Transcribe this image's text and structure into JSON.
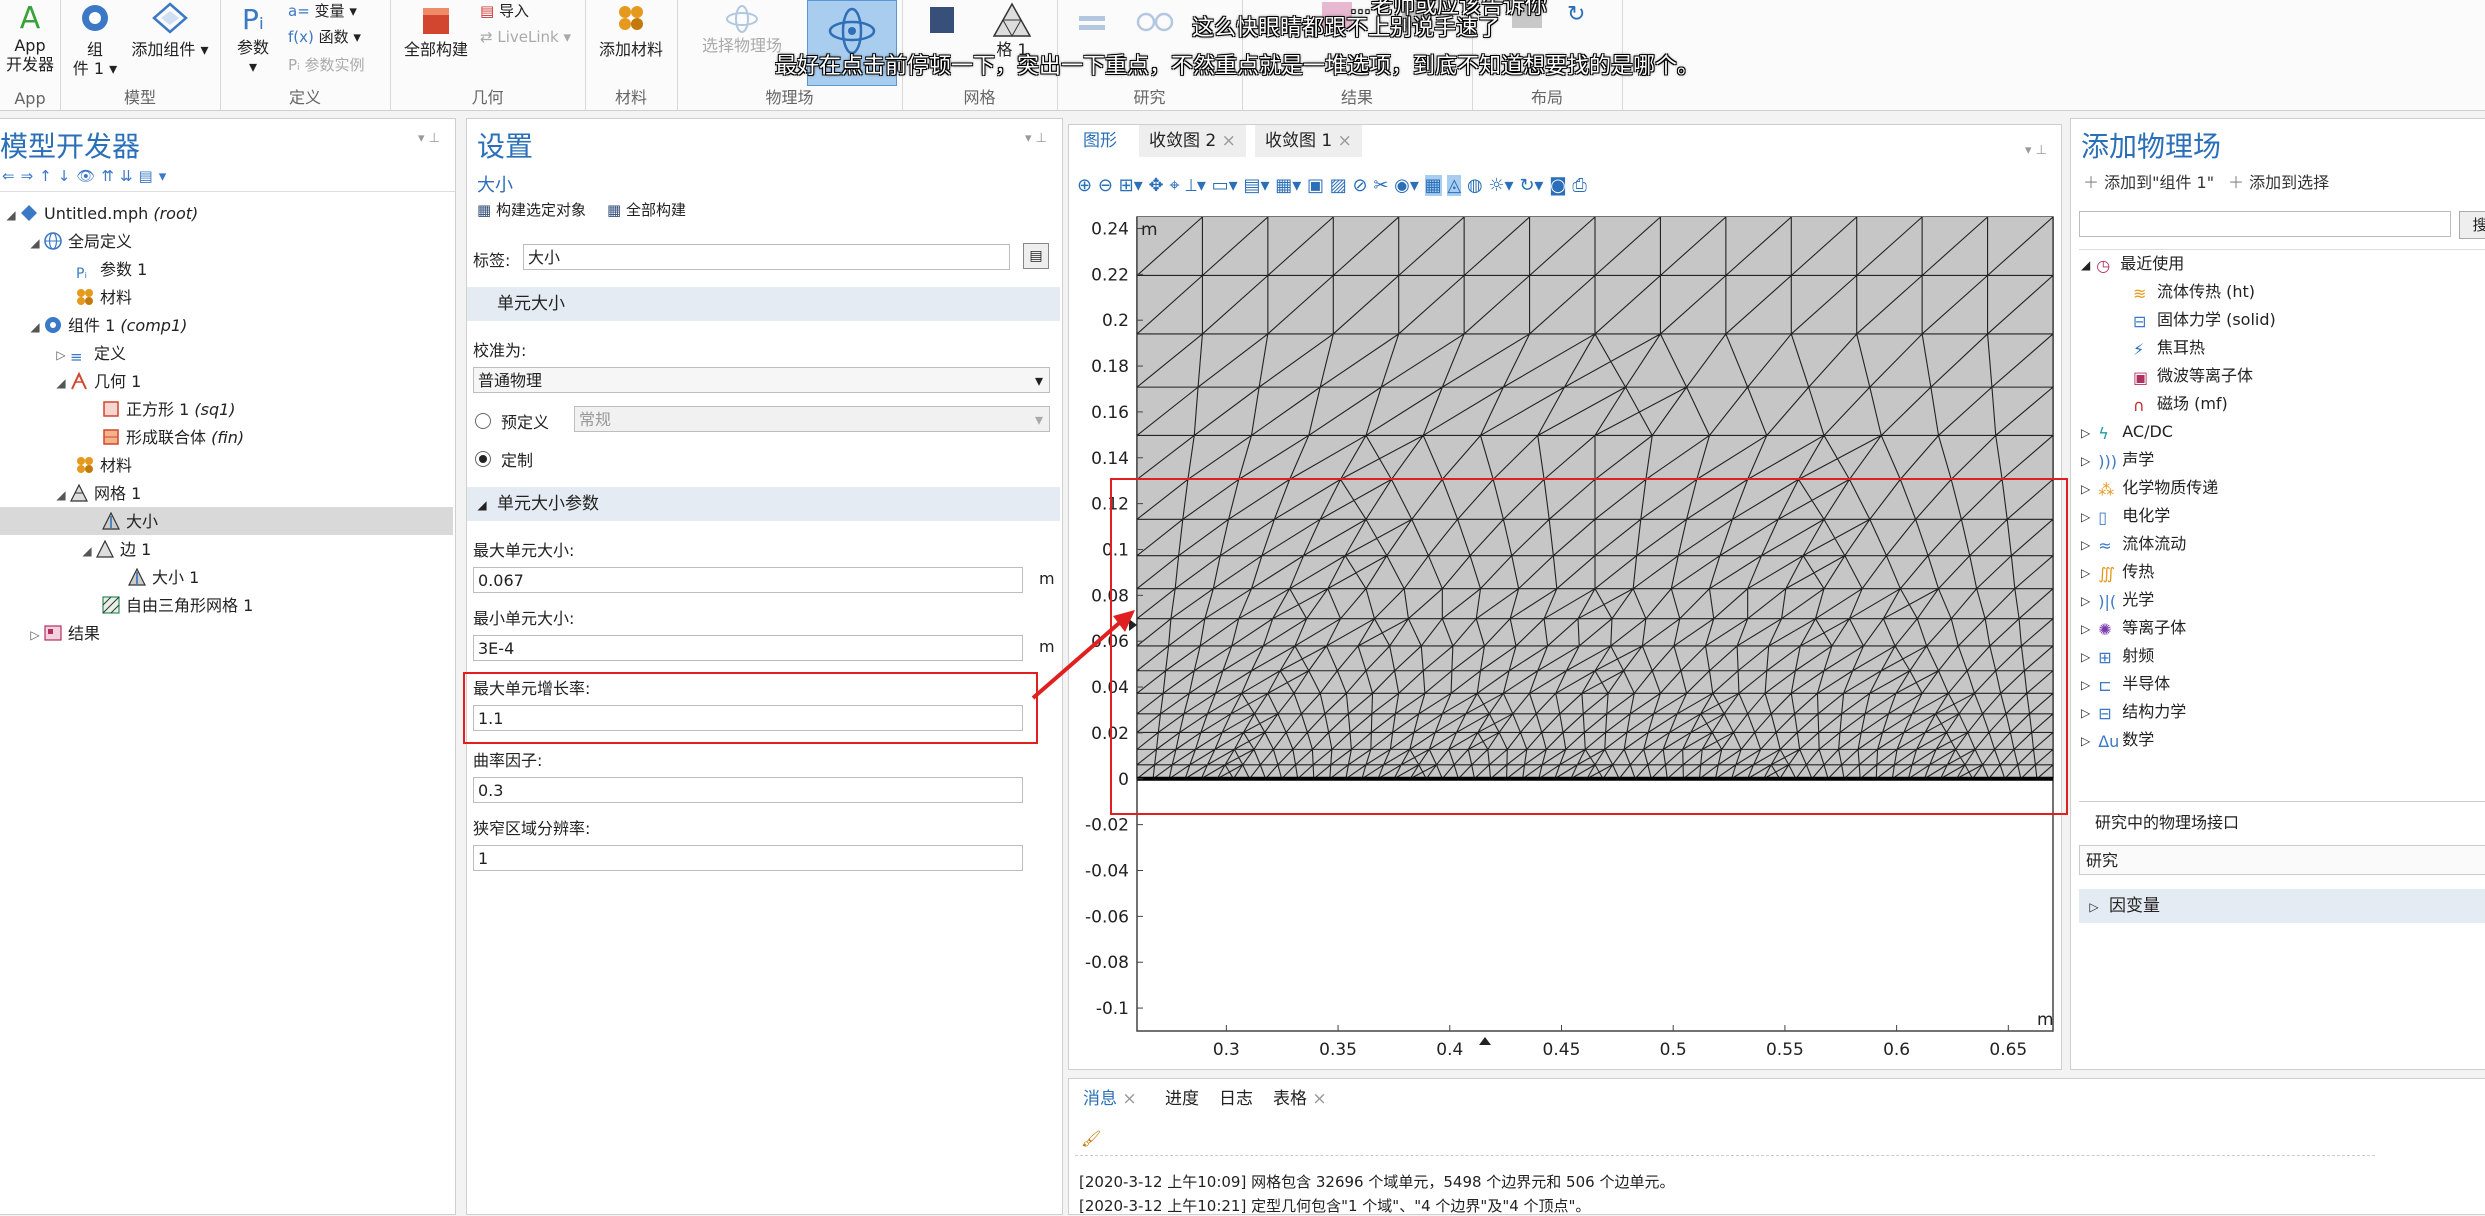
{
  "ribbon": {
    "app_dev": {
      "letter": "A",
      "line1": "App",
      "line2": "开发器"
    },
    "component": {
      "line1": "组",
      "line2": "件 1"
    },
    "add_component": "添加组件",
    "parameters": "参数",
    "variables": "变量",
    "functions": "函数",
    "param_case": "参数实例",
    "build_all": "全部构建",
    "import": "导入",
    "livelink": "LiveLink",
    "add_material": "添加材料",
    "select_physics": "选择物理场",
    "grid_line2": "格 1",
    "groups": {
      "app": "App",
      "model": "模型",
      "definitions": "定义",
      "geometry": "几何",
      "materials": "材料",
      "physics": "物理场",
      "mesh": "网格",
      "study": "研究",
      "results": "结果",
      "layout": "布局"
    }
  },
  "subtitles": {
    "line0": "...老师或应该告诉你",
    "line1": "这么快眼睛都跟不上别说手速了",
    "line2": "最好在点击前停顿一下，突出一下重点，不然重点就是一堆选项，到底不知道想要找的是哪个。"
  },
  "model_builder": {
    "title": "模型开发器",
    "tree": [
      {
        "label": "Untitled.mph",
        "extra": "(root)"
      },
      {
        "label": "全局定义",
        "extra": ""
      },
      {
        "label": "参数 1",
        "extra": ""
      },
      {
        "label": "材料",
        "extra": ""
      },
      {
        "label": "组件 1",
        "extra": "(comp1)"
      },
      {
        "label": "定义",
        "extra": ""
      },
      {
        "label": "几何 1",
        "extra": ""
      },
      {
        "label": "正方形 1",
        "extra": "(sq1)"
      },
      {
        "label": "形成联合体",
        "extra": "(fin)"
      },
      {
        "label": "材料",
        "extra": ""
      },
      {
        "label": "网格 1",
        "extra": ""
      },
      {
        "label": "大小",
        "extra": ""
      },
      {
        "label": "边 1",
        "extra": ""
      },
      {
        "label": "大小 1",
        "extra": ""
      },
      {
        "label": "自由三角形网格 1",
        "extra": ""
      },
      {
        "label": "结果",
        "extra": ""
      }
    ]
  },
  "settings": {
    "title": "设置",
    "subtitle": "大小",
    "build_selected": "构建选定对象",
    "build_all": "全部构建",
    "label_caption": "标签:",
    "label_value": "大小",
    "section_element_size": "单元大小",
    "calibrate_for": "校准为:",
    "calibrate_value": "普通物理",
    "predefined": "预定义",
    "predefined_value": "常规",
    "custom": "定制",
    "section_params": "单元大小参数",
    "max_size_label": "最大单元大小:",
    "max_size": "0.067",
    "min_size_label": "最小单元大小:",
    "min_size": "3E-4",
    "growth_label": "最大单元增长率:",
    "growth": "1.1",
    "curvature_label": "曲率因子:",
    "curvature": "0.3",
    "narrow_label": "狭窄区域分辨率:",
    "narrow": "1",
    "unit_m": "m"
  },
  "graphics": {
    "tabs": [
      "图形",
      "收敛图 2",
      "收敛图 1"
    ],
    "y_ticks": [
      "0.24",
      "0.22",
      "0.2",
      "0.18",
      "0.16",
      "0.14",
      "0.12",
      "0.1",
      "0.08",
      "0.06",
      "0.04",
      "0.02",
      "0",
      "-0.02",
      "-0.04",
      "-0.06",
      "-0.08",
      "-0.1"
    ],
    "x_ticks": [
      "0.3",
      "0.35",
      "0.4",
      "0.45",
      "0.5",
      "0.55",
      "0.6",
      "0.65"
    ],
    "unit": "m"
  },
  "physics": {
    "title": "添加物理场",
    "add_to": "添加到\"组件 1\"",
    "add_to_selection": "添加到选择",
    "search_btn": "搜",
    "recent": "最近使用",
    "recent_items": [
      "流体传热 (ht)",
      "固体力学 (solid)",
      "焦耳热",
      "微波等离子体",
      "磁场 (mf)"
    ],
    "categories": [
      "AC/DC",
      "声学",
      "化学物质传递",
      "电化学",
      "流体流动",
      "传热",
      "光学",
      "等离子体",
      "射频",
      "半导体",
      "结构力学",
      "数学"
    ],
    "interfaces_title": "研究中的物理场接口",
    "study_col": "研究",
    "dependent_vars": "因变量"
  },
  "messages": {
    "tabs": [
      "消息",
      "进度",
      "日志",
      "表格"
    ],
    "lines": [
      "[2020-3-12 上午10:09] 网格包含 32696 个域单元，5498 个边界元和 506 个边单元。",
      "[2020-3-12 上午10:21] 定型几何包含\"1 个域\"、\"4 个边界\"及\"4 个顶点\"。"
    ]
  },
  "colors": {
    "accent": "#2a6fb8",
    "highlight_red": "#e02020",
    "mesh_fill": "#c6c6c6",
    "selected_row": "#d9d9d9"
  }
}
